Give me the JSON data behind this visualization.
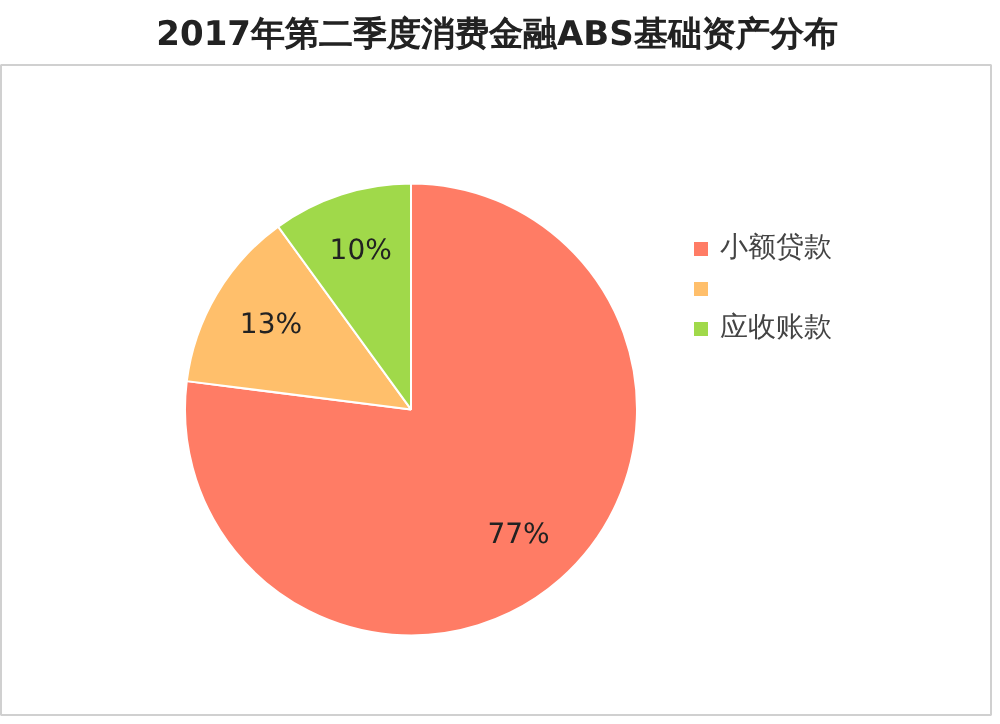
{
  "chart_data": {
    "type": "pie",
    "title": "2017年第二季度消费金融ABS基础资产分布",
    "categories": [
      "小额贷款",
      null,
      "应收账款"
    ],
    "values": [
      77,
      13,
      10
    ],
    "colors": [
      "#ff7c65",
      "#ffbf6b",
      "#a0d94a"
    ],
    "value_labels": [
      "77%",
      "13%",
      "10%"
    ],
    "legend": "right"
  }
}
